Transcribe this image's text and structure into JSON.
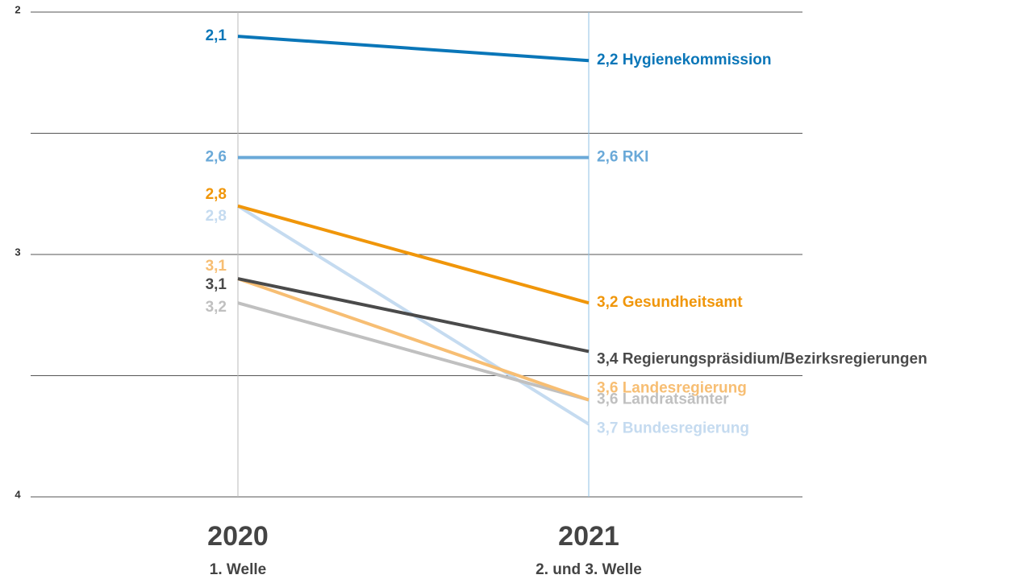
{
  "chart_data": {
    "type": "line",
    "categories": [
      "2020",
      "2021"
    ],
    "subcategories": [
      "1. Welle",
      "2. und 3. Welle"
    ],
    "ylim": [
      2,
      4
    ],
    "inverted": true,
    "yticks": [
      2,
      3,
      4
    ],
    "ygrid": [
      2,
      2.5,
      3,
      3.5,
      4
    ],
    "series": [
      {
        "name": "Hygienekommission",
        "color": "#0a76b8",
        "values": [
          2.1,
          2.2
        ],
        "value_labels": [
          "2,1",
          "2,2"
        ]
      },
      {
        "name": "RKI",
        "color": "#6aa9d8",
        "values": [
          2.6,
          2.6
        ],
        "value_labels": [
          "2,6",
          "2,6"
        ]
      },
      {
        "name": "Gesundheitsamt",
        "color": "#f0960a",
        "values": [
          2.8,
          3.2
        ],
        "value_labels": [
          "2,8",
          "3,2"
        ]
      },
      {
        "name": "Bundesregierung",
        "color": "#c5dbf0",
        "values": [
          2.8,
          3.7
        ],
        "value_labels": [
          "2,8",
          "3,7"
        ]
      },
      {
        "name": "Landesregierung",
        "color": "#f7be73",
        "values": [
          3.1,
          3.6
        ],
        "value_labels": [
          "3,1",
          "3,6"
        ]
      },
      {
        "name": "Regierungspräsidium/Bezirksregierungen",
        "color": "#4a4a4a",
        "values": [
          3.1,
          3.4
        ],
        "value_labels": [
          "3,1",
          "3,4"
        ]
      },
      {
        "name": "Landratsämter",
        "color": "#c0c0c0",
        "values": [
          3.2,
          3.6
        ],
        "value_labels": [
          "3,2",
          "3,6"
        ]
      }
    ]
  }
}
